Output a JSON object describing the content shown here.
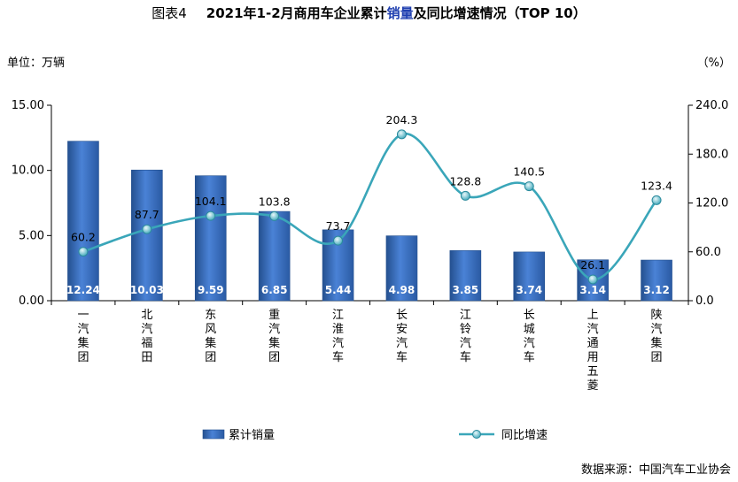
{
  "page": {
    "figure_no": "图表4",
    "title_pre": "2021年1-2月商用车企业累计",
    "title_hl": "销量",
    "title_post": "及同比增速情况（TOP 10）",
    "unit_left": "单位：万辆",
    "unit_right": "（%）",
    "source": "数据来源：中国汽车工业协会"
  },
  "chart_data": {
    "type": "bar",
    "categories": [
      "一汽集团",
      "北汽福田",
      "东风集团",
      "重汽集团",
      "江淮汽车",
      "长安汽车",
      "江铃汽车",
      "长城汽车",
      "上汽通用五菱",
      "陕汽集团"
    ],
    "series": [
      {
        "name": "累计销量",
        "type": "bar",
        "axis": "left",
        "values": [
          12.24,
          10.03,
          9.59,
          6.85,
          5.44,
          4.98,
          3.85,
          3.74,
          3.14,
          3.12
        ]
      },
      {
        "name": "同比增速",
        "type": "line",
        "axis": "right",
        "values": [
          60.2,
          87.7,
          104.1,
          103.8,
          73.7,
          204.3,
          128.8,
          140.5,
          26.1,
          123.4
        ]
      }
    ],
    "yleft": {
      "min": 0,
      "max": 15,
      "ticks": [
        "0.00",
        "5.00",
        "10.00",
        "15.00"
      ]
    },
    "yright": {
      "min": 0,
      "max": 240,
      "ticks": [
        "0.0",
        "60.0",
        "120.0",
        "180.0",
        "240.0"
      ]
    },
    "bar_labels": [
      "12.24",
      "10.03",
      "9.59",
      "6.85",
      "5.44",
      "4.98",
      "3.85",
      "3.74",
      "3.14",
      "3.12"
    ],
    "line_labels": [
      "60.2",
      "87.7",
      "104.1",
      "103.8",
      "73.7",
      "204.3",
      "128.8",
      "140.5",
      "26.1",
      "123.4"
    ],
    "legend_position": "bottom",
    "grid": false,
    "colors": {
      "bar": "#3a6fc4",
      "bar_dark": "#24508f",
      "line": "#3aa6b9"
    }
  }
}
